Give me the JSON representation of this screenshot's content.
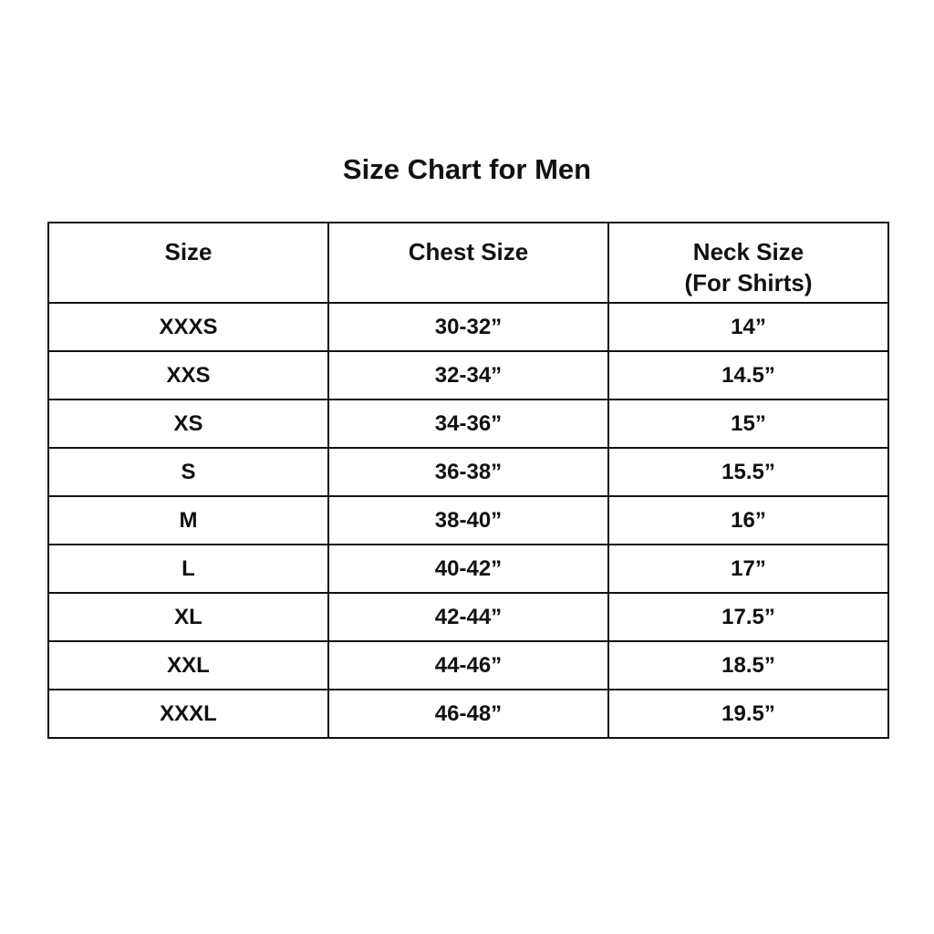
{
  "title": "Size Chart for Men",
  "headers": [
    "Size",
    "Chest Size",
    "Neck Size",
    "(For Shirts)"
  ],
  "rows": [
    {
      "size": "XXXS",
      "chest": "30-32”",
      "neck": "14”"
    },
    {
      "size": "XXS",
      "chest": "32-34”",
      "neck": "14.5”"
    },
    {
      "size": "XS",
      "chest": "34-36”",
      "neck": "15”"
    },
    {
      "size": "S",
      "chest": "36-38”",
      "neck": "15.5”"
    },
    {
      "size": "M",
      "chest": "38-40”",
      "neck": "16”"
    },
    {
      "size": "L",
      "chest": "40-42”",
      "neck": "17”"
    },
    {
      "size": "XL",
      "chest": "42-44”",
      "neck": "17.5”"
    },
    {
      "size": "XXL",
      "chest": "44-46”",
      "neck": "18.5”"
    },
    {
      "size": "XXXL",
      "chest": "46-48”",
      "neck": "19.5”"
    }
  ]
}
